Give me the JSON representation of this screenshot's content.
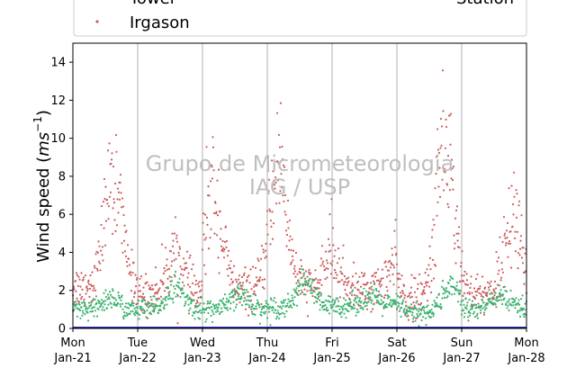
{
  "chart_data": {
    "type": "scatter",
    "ylabel_main": "Wind speed (",
    "ylabel_unit": "ms",
    "ylabel_exp": "−1",
    "ylabel_close": ")",
    "ylim": [
      0,
      15
    ],
    "yticks": [
      0,
      2,
      4,
      6,
      8,
      10,
      12,
      14
    ],
    "grid_vertical": true,
    "x_start": "2019-01-21",
    "x_end": "2019-01-28",
    "xticks": [
      {
        "day": "Mon",
        "date": "Jan-21"
      },
      {
        "day": "Tue",
        "date": "Jan-22"
      },
      {
        "day": "Wed",
        "date": "Jan-23"
      },
      {
        "day": "Thu",
        "date": "Jan-24"
      },
      {
        "day": "Fri",
        "date": "Jan-25"
      },
      {
        "day": "Sat",
        "date": "Jan-26"
      },
      {
        "day": "Sun",
        "date": "Jan-27"
      },
      {
        "day": "Mon",
        "date": "Jan-28"
      }
    ],
    "legend": {
      "placement": "top",
      "items": [
        "Tower",
        "Irgason",
        "Station"
      ]
    },
    "watermark": [
      "Grupo de Micrometeorologia",
      "IAG / USP"
    ],
    "series": [
      {
        "name": "Irgason",
        "color": "#cd5c5c",
        "daily_peak_profile": [
          {
            "day": 0,
            "base": 2.2,
            "peak": 9.5,
            "peak_hour": 15
          },
          {
            "day": 1,
            "base": 1.8,
            "peak": 4.5,
            "peak_hour": 14
          },
          {
            "day": 2,
            "base": 2.0,
            "peak": 8.5,
            "peak_hour": 4
          },
          {
            "day": 3,
            "base": 2.2,
            "peak": 10.5,
            "peak_hour": 4
          },
          {
            "day": 4,
            "base": 2.0,
            "peak": 4.0,
            "peak_hour": 0
          },
          {
            "day": 5,
            "base": 1.5,
            "peak": 12.0,
            "peak_hour": 18
          },
          {
            "day": 6,
            "base": 1.8,
            "peak": 7.0,
            "peak_hour": 19
          },
          {
            "day": 7,
            "base": 2.0,
            "peak": 9.0,
            "peak_hour": 14
          }
        ]
      },
      {
        "name": "Tower",
        "color": "#3cb371",
        "daily_peak_profile": [
          {
            "day": 0,
            "base": 0.9,
            "peak": 1.8,
            "peak_hour": 14
          },
          {
            "day": 1,
            "base": 1.0,
            "peak": 2.5,
            "peak_hour": 14
          },
          {
            "day": 2,
            "base": 1.0,
            "peak": 2.0,
            "peak_hour": 14
          },
          {
            "day": 3,
            "base": 1.1,
            "peak": 2.8,
            "peak_hour": 14
          },
          {
            "day": 4,
            "base": 1.2,
            "peak": 1.8,
            "peak_hour": 14
          },
          {
            "day": 5,
            "base": 0.8,
            "peak": 2.8,
            "peak_hour": 20
          },
          {
            "day": 6,
            "base": 1.0,
            "peak": 1.9,
            "peak_hour": 14
          },
          {
            "day": 7,
            "base": 1.1,
            "peak": 2.2,
            "peak_hour": 14
          }
        ]
      },
      {
        "name": "Station",
        "color": "#00008b",
        "values_constant": 0.05
      }
    ]
  }
}
